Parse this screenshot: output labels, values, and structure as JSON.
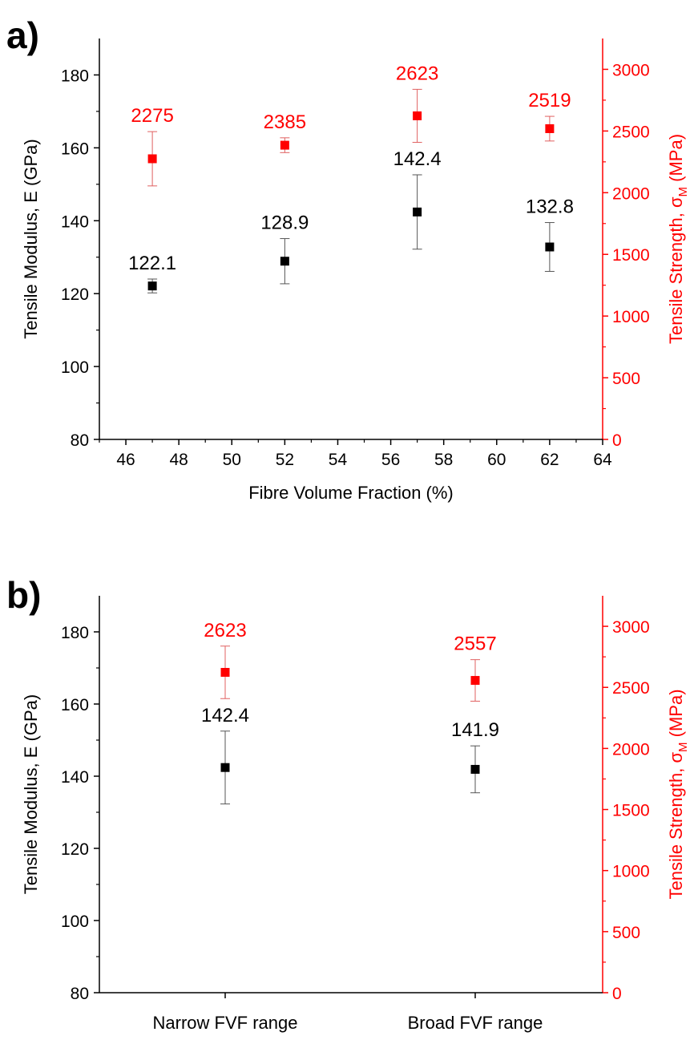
{
  "chart_data": [
    {
      "type": "scatter",
      "panel_label": "a)",
      "xlabel": "Fibre Volume Fraction (%)",
      "x_axis_kind": "numeric",
      "xlim": [
        45,
        64
      ],
      "xticks": [
        46,
        48,
        50,
        52,
        54,
        56,
        58,
        60,
        62,
        64
      ],
      "ylabel_left": "Tensile Modulus, E (GPa)",
      "ylim_left": [
        80,
        190
      ],
      "yticks_left": [
        80,
        100,
        120,
        140,
        160,
        180
      ],
      "ylabel_right": {
        "main": "Tensile Strength, σ",
        "sub": "M",
        "unit": " (MPa)"
      },
      "ylim_right": [
        0,
        3250
      ],
      "yticks_right": [
        0,
        500,
        1000,
        1500,
        2000,
        2500,
        3000
      ],
      "grid": false,
      "series": [
        {
          "axis": "left",
          "color": "#000000",
          "x": [
            47,
            52,
            57,
            62
          ],
          "y": [
            122.1,
            128.9,
            142.4,
            132.8
          ],
          "err": [
            1.9,
            6.2,
            10.2,
            6.7
          ],
          "labels": [
            "122.1",
            "128.9",
            "142.4",
            "132.8"
          ]
        },
        {
          "axis": "right",
          "color": "#ff0000",
          "x": [
            47,
            52,
            57,
            62
          ],
          "y": [
            2275,
            2385,
            2623,
            2519
          ],
          "err": [
            220,
            60,
            215,
            100
          ],
          "labels": [
            "2275",
            "2385",
            "2623",
            "2519"
          ]
        }
      ]
    },
    {
      "type": "scatter",
      "panel_label": "b)",
      "xlabel": "",
      "x_axis_kind": "categorical",
      "categories": [
        "Narrow FVF range",
        "Broad FVF range"
      ],
      "ylabel_left": "Tensile Modulus, E (GPa)",
      "ylim_left": [
        80,
        190
      ],
      "yticks_left": [
        80,
        100,
        120,
        140,
        160,
        180
      ],
      "ylabel_right": {
        "main": "Tensile Strength, σ",
        "sub": "M",
        "unit": " (MPa)"
      },
      "ylim_right": [
        0,
        3250
      ],
      "yticks_right": [
        0,
        500,
        1000,
        1500,
        2000,
        2500,
        3000
      ],
      "grid": false,
      "series": [
        {
          "axis": "left",
          "color": "#000000",
          "y": [
            142.4,
            141.9
          ],
          "err": [
            10.1,
            6.5
          ],
          "labels": [
            "142.4",
            "141.9"
          ]
        },
        {
          "axis": "right",
          "color": "#ff0000",
          "y": [
            2623,
            2557
          ],
          "err": [
            215,
            170
          ],
          "labels": [
            "2623",
            "2557"
          ]
        }
      ]
    }
  ]
}
